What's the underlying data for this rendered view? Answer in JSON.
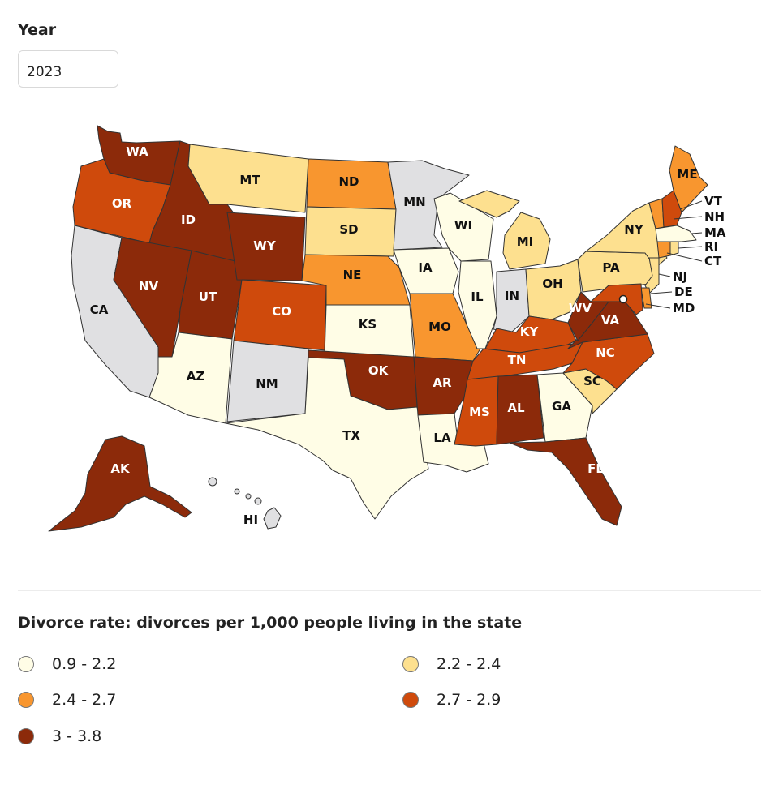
{
  "filter": {
    "label": "Year",
    "value": "2023"
  },
  "legend": {
    "title": "Divorce rate: divorces per 1,000 people living in the state",
    "items": [
      {
        "label": "0.9 - 2.2",
        "color": "#fffde6"
      },
      {
        "label": "2.2 - 2.4",
        "color": "#fde08f"
      },
      {
        "label": "2.4 - 2.7",
        "color": "#f8962f"
      },
      {
        "label": "2.7 - 2.9",
        "color": "#cf4a0c"
      },
      {
        "label": "3 - 3.8",
        "color": "#8c2a0a"
      }
    ],
    "no_data_color": "#e0e0e2"
  },
  "map": {
    "states": [
      {
        "abbr": "WA",
        "bin": 4
      },
      {
        "abbr": "OR",
        "bin": 3
      },
      {
        "abbr": "CA",
        "bin": -1
      },
      {
        "abbr": "ID",
        "bin": 4
      },
      {
        "abbr": "NV",
        "bin": 4
      },
      {
        "abbr": "MT",
        "bin": 1
      },
      {
        "abbr": "WY",
        "bin": 4
      },
      {
        "abbr": "UT",
        "bin": 4
      },
      {
        "abbr": "AZ",
        "bin": 0
      },
      {
        "abbr": "CO",
        "bin": 3
      },
      {
        "abbr": "NM",
        "bin": -1
      },
      {
        "abbr": "ND",
        "bin": 2
      },
      {
        "abbr": "SD",
        "bin": 1
      },
      {
        "abbr": "NE",
        "bin": 2
      },
      {
        "abbr": "KS",
        "bin": 0
      },
      {
        "abbr": "OK",
        "bin": 4
      },
      {
        "abbr": "TX",
        "bin": 0
      },
      {
        "abbr": "MN",
        "bin": -1
      },
      {
        "abbr": "IA",
        "bin": 0
      },
      {
        "abbr": "MO",
        "bin": 2
      },
      {
        "abbr": "AR",
        "bin": 4
      },
      {
        "abbr": "LA",
        "bin": 0
      },
      {
        "abbr": "WI",
        "bin": 0
      },
      {
        "abbr": "IL",
        "bin": 0
      },
      {
        "abbr": "MI",
        "bin": 1
      },
      {
        "abbr": "IN",
        "bin": -1
      },
      {
        "abbr": "OH",
        "bin": 1
      },
      {
        "abbr": "KY",
        "bin": 3
      },
      {
        "abbr": "TN",
        "bin": 3
      },
      {
        "abbr": "MS",
        "bin": 3
      },
      {
        "abbr": "AL",
        "bin": 4
      },
      {
        "abbr": "GA",
        "bin": 0
      },
      {
        "abbr": "FL",
        "bin": 4
      },
      {
        "abbr": "SC",
        "bin": 1
      },
      {
        "abbr": "NC",
        "bin": 3
      },
      {
        "abbr": "VA",
        "bin": 4
      },
      {
        "abbr": "WV",
        "bin": 4
      },
      {
        "abbr": "PA",
        "bin": 1
      },
      {
        "abbr": "NY",
        "bin": 1
      },
      {
        "abbr": "ME",
        "bin": 2
      },
      {
        "abbr": "VT",
        "bin": 2
      },
      {
        "abbr": "NH",
        "bin": 3
      },
      {
        "abbr": "MA",
        "bin": 0
      },
      {
        "abbr": "RI",
        "bin": 1
      },
      {
        "abbr": "CT",
        "bin": 2
      },
      {
        "abbr": "NJ",
        "bin": 1
      },
      {
        "abbr": "DE",
        "bin": 2
      },
      {
        "abbr": "MD",
        "bin": 3
      },
      {
        "abbr": "AK",
        "bin": 4
      },
      {
        "abbr": "HI",
        "bin": -1
      }
    ]
  }
}
